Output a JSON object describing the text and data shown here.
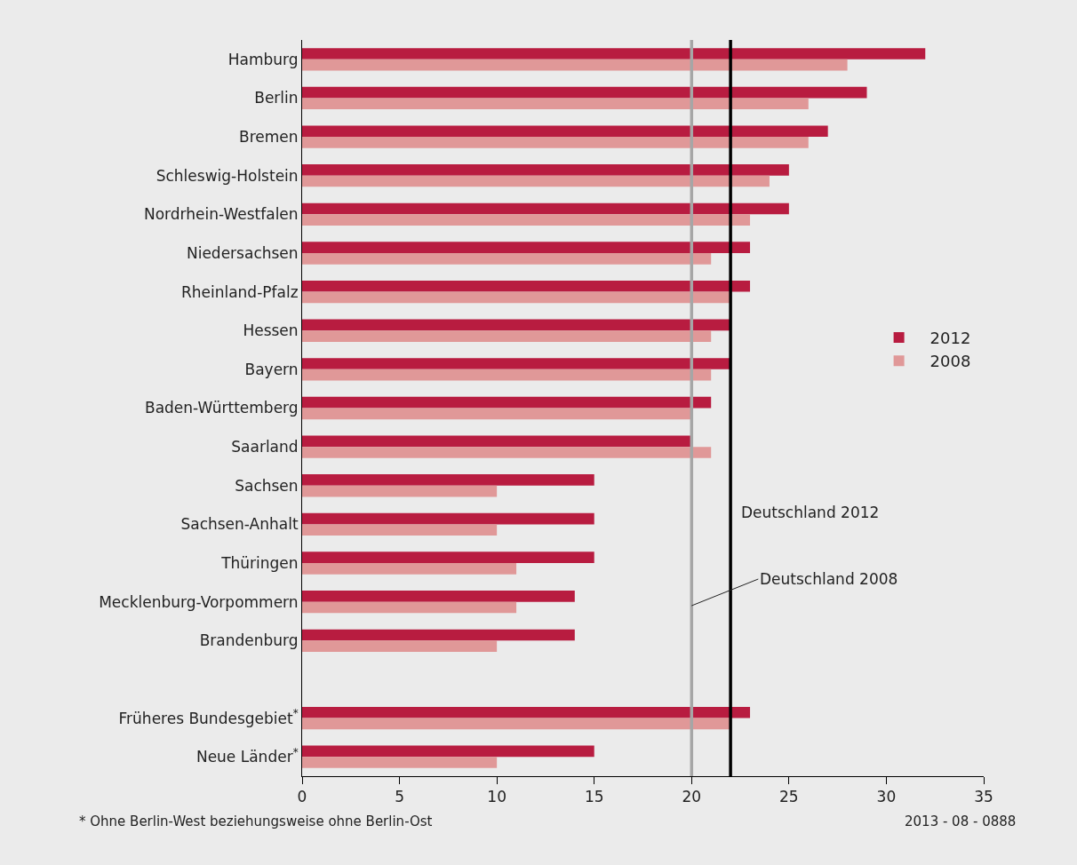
{
  "chart_data": {
    "type": "bar",
    "orientation": "horizontal",
    "categories": [
      "Hamburg",
      "Berlin",
      "Bremen",
      "Schleswig-Holstein",
      "Nordrhein-Westfalen",
      "Niedersachsen",
      "Rheinland-Pfalz",
      "Hessen",
      "Bayern",
      "Baden-Württemberg",
      "Saarland",
      "Sachsen",
      "Sachsen-Anhalt",
      "Thüringen",
      "Mecklenburg-Vorpommern",
      "Brandenburg",
      null,
      "Früheres Bundesgebiet$^{*}$",
      "Neue Länder$^{*}$"
    ],
    "series": [
      {
        "name": "2012",
        "color": "#b81c40",
        "values": [
          32,
          29,
          27,
          25,
          25,
          23,
          23,
          22,
          22,
          21,
          20,
          15,
          15,
          15,
          14,
          14,
          null,
          23,
          15
        ]
      },
      {
        "name": "2008",
        "color": "#e09898",
        "values": [
          28,
          26,
          26,
          24,
          23,
          21,
          22,
          21,
          21,
          20,
          21,
          10,
          10,
          11,
          11,
          10,
          null,
          22,
          10
        ]
      }
    ],
    "xlim": [
      0,
      35
    ],
    "xticks": [
      0,
      5,
      10,
      15,
      20,
      25,
      30,
      35
    ],
    "grid": false,
    "legend": "right",
    "ref_lines": [
      {
        "axis": "x",
        "value": 22,
        "label": "Deutschland 2012",
        "color": "#000000"
      },
      {
        "axis": "x",
        "value": 20,
        "label": "Deutschland 2008",
        "color": "#a6a6a6"
      }
    ],
    "annotations": [
      "* Ohne Berlin-West beziehungsweise ohne Berlin-Ost",
      "2013 - 08 - 0888"
    ]
  }
}
